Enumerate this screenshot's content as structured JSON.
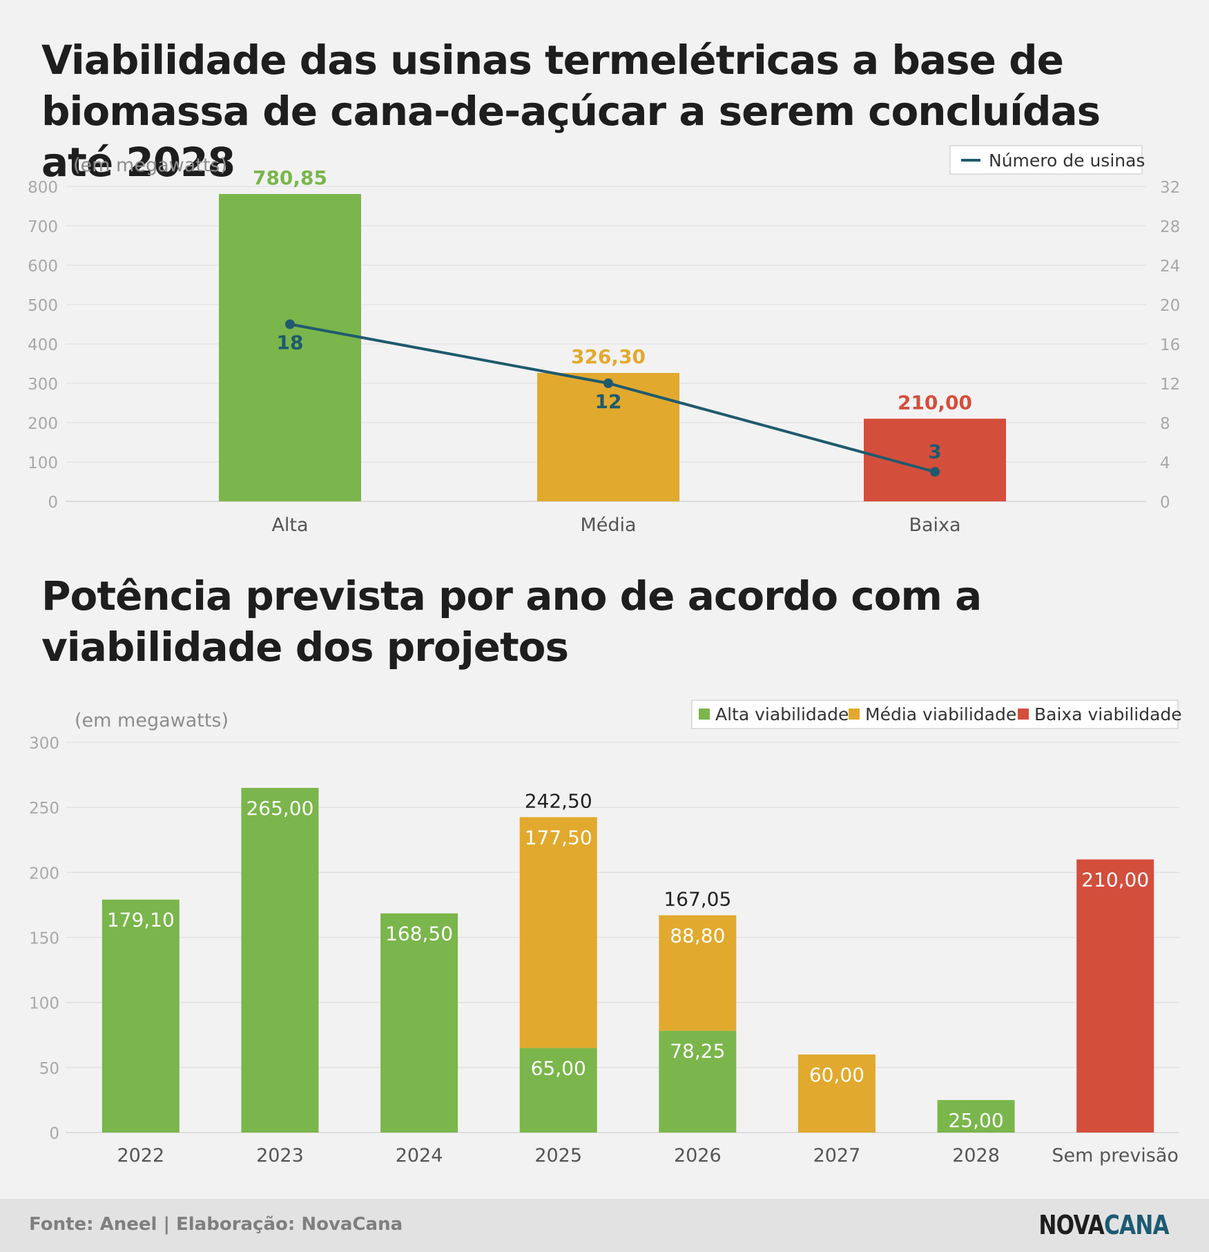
{
  "titles": {
    "chart1": "Viabilidade das usinas termelétricas a base de biomassa de cana-de-açúcar a serem concluídas até 2028",
    "chart2": "Potência prevista por ano de acordo com a viabilidade dos projetos"
  },
  "footer": {
    "source": "Fonte: Aneel | Elaboração: NovaCana",
    "logo_part1": "NOVA",
    "logo_part2": "CANA"
  },
  "colors": {
    "alta": "#7ab64b",
    "media": "#e1a92e",
    "baixa": "#d44e3c",
    "line": "#1f5a6e",
    "axis_text": "#a8a8a8",
    "category_text": "#555555",
    "total_text": "#222222"
  },
  "chart_data": [
    {
      "type": "bar",
      "unit_label": "(em megawatts)",
      "categories": [
        "Alta",
        "Média",
        "Baixa"
      ],
      "values": [
        780.85,
        326.3,
        210.0
      ],
      "value_labels": [
        "780,85",
        "326,30",
        "210,00"
      ],
      "ylim": [
        0,
        800
      ],
      "yticks": [
        0,
        100,
        200,
        300,
        400,
        500,
        600,
        700,
        800
      ],
      "secondary_series": {
        "type": "line",
        "name": "Número de usinas",
        "values": [
          18,
          12,
          3
        ],
        "ylim": [
          0,
          32
        ],
        "yticks": [
          0,
          4,
          8,
          12,
          16,
          20,
          24,
          28,
          32
        ]
      },
      "legend": "top-right",
      "grid": true
    },
    {
      "type": "bar",
      "stacked": true,
      "unit_label": "(em megawatts)",
      "categories": [
        "2022",
        "2023",
        "2024",
        "2025",
        "2026",
        "2027",
        "2028",
        "Sem previsão"
      ],
      "series": [
        {
          "name": "Alta viabilidade",
          "values": [
            179.1,
            265.0,
            168.5,
            65.0,
            78.25,
            0,
            25.0,
            0
          ],
          "labels": [
            "179,10",
            "265,00",
            "168,50",
            "65,00",
            "78,25",
            "",
            "25,00",
            ""
          ]
        },
        {
          "name": "Média viabilidade",
          "values": [
            0,
            0,
            0,
            177.5,
            88.8,
            60.0,
            0,
            0
          ],
          "labels": [
            "",
            "",
            "",
            "177,50",
            "88,80",
            "60,00",
            "",
            ""
          ]
        },
        {
          "name": "Baixa viabilidade",
          "values": [
            0,
            0,
            0,
            0,
            0,
            0,
            0,
            210.0
          ],
          "labels": [
            "",
            "",
            "",
            "",
            "",
            "",
            "",
            "210,00"
          ]
        }
      ],
      "totals": [
        null,
        null,
        null,
        242.5,
        167.05,
        null,
        null,
        null
      ],
      "total_labels": [
        "",
        "",
        "",
        "242,50",
        "167,05",
        "",
        "",
        ""
      ],
      "ylim": [
        0,
        300
      ],
      "yticks": [
        0,
        50,
        100,
        150,
        200,
        250,
        300
      ],
      "legend": "top-right",
      "grid": true
    }
  ]
}
